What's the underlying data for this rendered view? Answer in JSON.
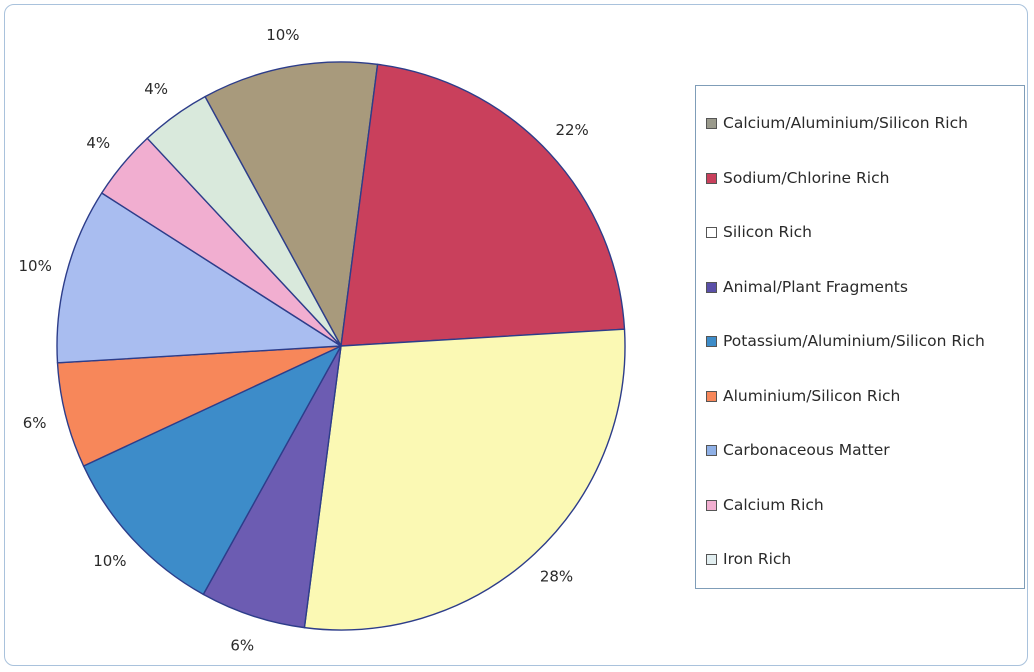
{
  "chart_data": {
    "type": "pie",
    "legend": "right",
    "slices": [
      {
        "label": "Calcium/Aluminium/Silicon Rich",
        "value": 10,
        "display": "10%",
        "color": "#a89a7c"
      },
      {
        "label": "Sodium/Chlorine Rich",
        "value": 22,
        "display": "22%",
        "color": "#c9405c"
      },
      {
        "label": "Silicon Rich",
        "value": 28,
        "display": "28%",
        "color": "#fbf9b4"
      },
      {
        "label": "Animal/Plant Fragments",
        "value": 6,
        "display": "6%",
        "color": "#6c5cb2"
      },
      {
        "label": "Potassium/Aluminium/Silicon Rich",
        "value": 10,
        "display": "10%",
        "color": "#3d8cc9"
      },
      {
        "label": "Aluminium/Silicon Rich",
        "value": 6,
        "display": "6%",
        "color": "#f7875a"
      },
      {
        "label": "Carbonaceous Matter",
        "value": 10,
        "display": "10%",
        "color": "#a9bdf0"
      },
      {
        "label": "Calcium Rich",
        "value": 4,
        "display": "4%",
        "color": "#f1aed0"
      },
      {
        "label": "Iron Rich",
        "value": 4,
        "display": "4%",
        "color": "#d9e9dc"
      }
    ]
  },
  "legend": {
    "swatch_colors": [
      "#9a9a8c",
      "#c9405c",
      "#ffffff",
      "#5a4fa8",
      "#3d8cc9",
      "#f7875a",
      "#8fb0e6",
      "#f1aed0",
      "#e1eef0"
    ]
  }
}
